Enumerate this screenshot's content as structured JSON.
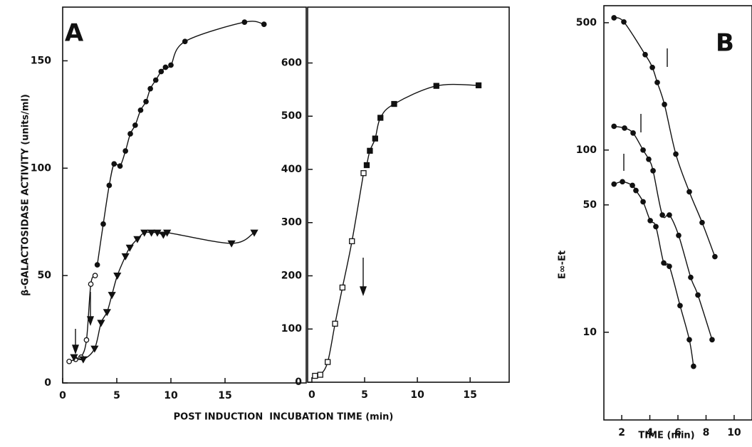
{
  "chart_data": [
    {
      "type": "scatter",
      "panel_label": "A",
      "ylabel": "β-GALACTOSIDASE ACTIVITY (units/ml)",
      "xlabel": "POST INDUCTION  INCUBATION TIME (min)",
      "xlim": [
        0,
        22.5
      ],
      "ylim": [
        0,
        175
      ],
      "xticks": [
        0,
        5,
        10,
        15
      ],
      "yticks": [
        0,
        50,
        100,
        150
      ],
      "log_y": false,
      "series": [
        {
          "marker": "filled-circle",
          "color": "#111111",
          "x": [
            3.2,
            3.75,
            4.3,
            4.75,
            5.3,
            5.8,
            6.25,
            6.7,
            7.2,
            7.7,
            8.1,
            8.6,
            9.1,
            9.5,
            10.0,
            11.3,
            16.8,
            18.6
          ],
          "values": [
            55,
            74,
            92,
            102,
            101,
            108,
            116,
            120,
            127,
            131,
            137,
            141,
            145,
            147,
            148,
            159,
            168,
            167
          ]
        },
        {
          "marker": "open-circle",
          "color": "#111111",
          "x": [
            0.6,
            1.2,
            1.7,
            2.2,
            2.6,
            3.0
          ],
          "values": [
            10,
            11,
            12,
            20,
            46,
            50
          ]
        },
        {
          "marker": "filled-triangle",
          "color": "#111111",
          "x": [
            1.05,
            1.9,
            2.95,
            3.55,
            4.1,
            4.55,
            5.05,
            5.8,
            6.2,
            6.9,
            7.55,
            8.2,
            8.75,
            9.3,
            9.65,
            15.6,
            17.7
          ],
          "values": [
            12,
            11,
            16,
            28,
            33,
            41,
            50,
            59,
            63,
            67,
            70,
            70,
            70,
            69,
            70,
            65,
            70
          ]
        }
      ]
    },
    {
      "type": "scatter",
      "xlim": [
        -0.4,
        18.7
      ],
      "ylim": [
        0,
        705
      ],
      "xticks": [
        0,
        5,
        10,
        15
      ],
      "yticks": [
        0,
        100,
        200,
        300,
        400,
        500,
        600
      ],
      "log_y": false,
      "series": [
        {
          "marker": "open-square",
          "color": "#111111",
          "x": [
            0.3,
            0.8,
            1.5,
            2.2,
            2.9,
            3.8,
            4.9
          ],
          "values": [
            12,
            14,
            38,
            110,
            178,
            265,
            393
          ]
        },
        {
          "marker": "filled-square",
          "color": "#111111",
          "x": [
            5.2,
            5.5,
            6.0,
            6.5,
            7.8,
            11.8,
            15.8
          ],
          "values": [
            408,
            435,
            458,
            497,
            523,
            557,
            558
          ]
        }
      ]
    },
    {
      "type": "scatter",
      "panel_label": "B",
      "ylabel": "E∞-Et",
      "xlabel": "TIME (min)",
      "xlim": [
        0.73,
        11.27
      ],
      "ylim": [
        3.3,
        620
      ],
      "xticks": [
        2,
        4,
        6,
        8,
        10
      ],
      "yticks": [
        10,
        50,
        100,
        500
      ],
      "log_y": true,
      "series": [
        {
          "marker": "filled-circle",
          "color": "#111111",
          "x": [
            1.45,
            2.15,
            3.67,
            4.18,
            4.53,
            5.04,
            5.85,
            6.81,
            7.72,
            8.63
          ],
          "values": [
            532,
            505,
            334,
            284,
            235,
            178,
            95,
            59,
            40,
            26
          ]
        },
        {
          "marker": "filled-circle",
          "color": "#111111",
          "x": [
            1.45,
            2.2,
            2.81,
            3.52,
            3.92,
            4.23,
            4.89,
            5.39,
            6.05,
            6.91,
            7.42,
            8.43
          ],
          "values": [
            135,
            132,
            124,
            100,
            89,
            77,
            44,
            44,
            34,
            20,
            16,
            9.1
          ]
        },
        {
          "marker": "filled-circle",
          "color": "#111111",
          "x": [
            1.45,
            2.05,
            2.76,
            3.01,
            3.52,
            4.03,
            4.43,
            4.99,
            5.39,
            6.15,
            6.81,
            7.11
          ],
          "values": [
            65,
            67,
            64,
            60,
            52,
            41,
            38,
            24,
            23,
            14,
            9.1,
            6.5
          ]
        }
      ]
    }
  ]
}
